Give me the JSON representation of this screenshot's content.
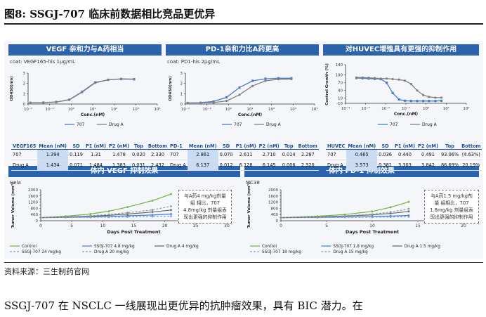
{
  "figure": {
    "title": "图8:  SSGJ-707 临床前数据相比竞品更优异",
    "source": "资料来源：三生制药官网",
    "body_text": "SSGJ-707 在 NSCLC 一线展现出更优异的抗肿瘤效果，具有 BIC 潜力。在"
  },
  "colors": {
    "header_blue": "#2c63ad",
    "s707": "#4a7bd0",
    "drugA": "#808080",
    "control": "#6fb33b",
    "drugA2": "#666666"
  },
  "chart_data": [
    {
      "type": "line",
      "header": "VEGF 亲和力与A药相当",
      "subtitle": "coat: VEGF165-his 1μg/mL",
      "xlabel": "Conc.(nM)",
      "ylabel": "OD450(nm)",
      "x_scale": "log",
      "xlim": [
        0.01,
        10000
      ],
      "ylim": [
        0,
        3
      ],
      "xticks": [
        "10⁻²",
        "10⁻¹",
        "10⁰",
        "10¹",
        "10²",
        "10³",
        "10⁴"
      ],
      "yticks": [
        "0",
        "1",
        "2",
        "3"
      ],
      "series": [
        {
          "name": "707",
          "x": [
            0.0127,
            0.0508,
            0.203,
            0.813,
            3.25,
            13.0,
            52.0,
            208,
            833
          ],
          "y": [
            0.12,
            0.14,
            0.2,
            0.42,
            1.2,
            2.1,
            2.35,
            2.42,
            2.4
          ]
        },
        {
          "name": "Drug A",
          "x": [
            0.0127,
            0.0508,
            0.203,
            0.813,
            3.25,
            13.0,
            52.0,
            208,
            833
          ],
          "y": [
            0.12,
            0.13,
            0.19,
            0.4,
            1.15,
            2.05,
            2.35,
            2.45,
            2.42
          ]
        }
      ],
      "table": {
        "headers": [
          "VEGF165",
          "Mean (nM)",
          "SD",
          "P1 (nM)",
          "P2 (nM)",
          "Top",
          "Bottom"
        ],
        "rows": [
          [
            "707",
            "1.394",
            "0.119",
            "1.31",
            "1.478",
            "0.020",
            "2.330"
          ],
          [
            "Drug A",
            "1.434",
            "0.071",
            "1.484",
            "1.383",
            "0.031",
            "2.432"
          ]
        ]
      }
    },
    {
      "type": "line",
      "header": "PD-1亲和力比A药更高",
      "subtitle": "coat: PD1-his 2μg/mL",
      "xlabel": "Conc.(nM)",
      "ylabel": "OD450(nm)",
      "x_scale": "log",
      "xlim": [
        0.01,
        10000
      ],
      "ylim": [
        0,
        3
      ],
      "xticks": [
        "10⁻²",
        "10⁻¹",
        "10⁰",
        "10¹",
        "10²",
        "10³",
        "10⁴"
      ],
      "yticks": [
        "0",
        "1",
        "2",
        "3"
      ],
      "series": [
        {
          "name": "707",
          "x": [
            0.0127,
            0.0508,
            0.203,
            0.813,
            3.25,
            13.0,
            52.0,
            208,
            833
          ],
          "y": [
            0.1,
            0.12,
            0.25,
            0.65,
            1.6,
            2.25,
            2.45,
            2.5,
            2.5
          ]
        },
        {
          "name": "Drug A",
          "x": [
            0.0127,
            0.0508,
            0.203,
            0.813,
            3.25,
            13.0,
            52.0,
            208,
            833
          ],
          "y": [
            0.1,
            0.1,
            0.14,
            0.3,
            0.9,
            1.75,
            2.25,
            2.4,
            2.42
          ]
        }
      ],
      "table": {
        "headers": [
          "PD-1",
          "Mean (nM)",
          "SD",
          "P1 (nM)",
          "P2 (nM)",
          "Top",
          "Bottom"
        ],
        "rows": [
          [
            "707",
            "2.861",
            "0.070",
            "2.611",
            "2.710",
            "0.014",
            "2.287"
          ],
          [
            "Drug A",
            "6.137",
            "0.012",
            "6.128",
            "6.145",
            "0.006",
            "2.320"
          ]
        ]
      }
    },
    {
      "type": "line",
      "header": "对HUVEC增殖具有更强的抑制作用",
      "xlabel": "Conc.(nM)",
      "ylabel": "Control Growth (%)",
      "x_scale": "log",
      "xlim": [
        0.0001,
        100
      ],
      "ylim": [
        -10,
        140
      ],
      "xticks": [
        "10⁻⁴",
        "10⁻³",
        "10⁻²",
        "10⁻¹",
        "10⁰",
        "10¹",
        "10²"
      ],
      "yticks": [
        "-10",
        "10",
        "40",
        "70",
        "100",
        "140"
      ],
      "series": [
        {
          "name": "707",
          "x": [
            0.00035,
            0.0007,
            0.0014,
            0.0028,
            0.0056,
            0.011,
            0.022,
            0.045,
            0.09,
            0.18,
            0.36,
            0.72,
            1.4,
            2.9,
            5.8
          ],
          "y": [
            88,
            87,
            86,
            85,
            84,
            70,
            30,
            5,
            0,
            -1,
            -1,
            -1,
            -1,
            -1,
            0
          ]
        },
        {
          "name": "Drug A",
          "x": [
            0.00035,
            0.0007,
            0.0014,
            0.0028,
            0.0056,
            0.011,
            0.022,
            0.045,
            0.09,
            0.18,
            0.36,
            0.72,
            1.4,
            2.9,
            5.8
          ],
          "y": [
            90,
            90,
            89,
            88,
            86,
            86,
            84,
            82,
            78,
            65,
            40,
            22,
            15,
            12,
            12
          ]
        }
      ],
      "table": {
        "headers": [
          "HUVEC",
          "Mean (nM)",
          "SD",
          "P1 (nM)",
          "P2 (nM)",
          "Top",
          "Bottom"
        ],
        "rows": [
          [
            "707",
            "0.465",
            "0.036",
            "0.440",
            "0.491",
            "93.06%",
            "(4.63%)"
          ],
          [
            "Drug A",
            "3.573",
            "0.381",
            "3.303",
            "3.842",
            "86.69%",
            "20.19%"
          ]
        ]
      }
    },
    {
      "type": "line",
      "header": "体内 VEGF 抑制效果",
      "model": "Hela",
      "xlabel": "Days Post Treatment",
      "ylabel": "Tumor Volume (mm³)",
      "xlim": [
        0,
        30
      ],
      "ylim": [
        0,
        2000
      ],
      "xticks": [
        "0",
        "5",
        "10",
        "15",
        "20",
        "25",
        "30"
      ],
      "yticks": [
        "0",
        "200",
        "400",
        "600",
        "800",
        "1000",
        "1200",
        "1400",
        "1600",
        "1800",
        "2000"
      ],
      "note": "与A药4 mg/kg剂量组 相比，707 4.8mg/kg 剂量组表 现出更强的抑制作用",
      "series": [
        {
          "name": "Control",
          "x": [
            0,
            4,
            8,
            11,
            14,
            18,
            21
          ],
          "y": [
            200,
            290,
            430,
            620,
            880,
            1300,
            1720
          ]
        },
        {
          "name": "SSGJ-707 4.8 mg/kg",
          "x": [
            0,
            4,
            8,
            11,
            14,
            18,
            21
          ],
          "y": [
            200,
            220,
            250,
            280,
            320,
            370,
            430
          ]
        },
        {
          "name": "Drug A 4 mg/kg",
          "x": [
            0,
            4,
            8,
            11,
            14,
            18,
            21
          ],
          "y": [
            200,
            235,
            290,
            350,
            430,
            560,
            690
          ]
        },
        {
          "name": "SSGJ-707 24 mg/kg",
          "x": [
            0,
            4,
            8,
            11,
            14,
            18,
            21
          ],
          "y": [
            200,
            210,
            220,
            235,
            250,
            270,
            290
          ]
        },
        {
          "name": "Drug A 20 mg/kg",
          "x": [
            0,
            4,
            8,
            11,
            14,
            18,
            21
          ],
          "y": [
            200,
            240,
            320,
            410,
            520,
            700,
            930
          ]
        }
      ]
    },
    {
      "type": "line",
      "header": "体内 PD-1 抑制效果",
      "model": "MC38",
      "xlabel": "Days Post Treatment",
      "ylabel": "Tumor Volume (mm³)",
      "xlim": [
        0,
        20
      ],
      "ylim": [
        0,
        2000
      ],
      "xticks": [
        "0",
        "5",
        "10",
        "15",
        "20"
      ],
      "yticks": [
        "0",
        "200",
        "400",
        "600",
        "800",
        "1000",
        "1200",
        "1400",
        "1600",
        "1800",
        "2000"
      ],
      "note": "与A药1.5 mg/kg剂量 组相比，707 1.8mg/kg 剂量组表 现出更强的抑制作用",
      "series": [
        {
          "name": "Control",
          "x": [
            0,
            4,
            7,
            10,
            12,
            14
          ],
          "y": [
            200,
            290,
            400,
            600,
            870,
            1220
          ]
        },
        {
          "name": "SSGJ-707 1.8 mg/kg",
          "x": [
            0,
            4,
            7,
            10,
            12,
            14
          ],
          "y": [
            200,
            215,
            240,
            270,
            300,
            340
          ]
        },
        {
          "name": "Drug A 1.5 mg/kg",
          "x": [
            0,
            4,
            7,
            10,
            12,
            14
          ],
          "y": [
            200,
            240,
            300,
            380,
            470,
            600
          ]
        },
        {
          "name": "SSGJ-707 18 mg/kg",
          "x": [
            0,
            4,
            7,
            10,
            12,
            14
          ],
          "y": [
            200,
            205,
            215,
            230,
            245,
            260
          ]
        },
        {
          "name": "Drug A 15 mg/kg",
          "x": [
            0,
            4,
            7,
            10,
            12,
            14
          ],
          "y": [
            200,
            245,
            320,
            420,
            560,
            770
          ]
        }
      ]
    }
  ]
}
